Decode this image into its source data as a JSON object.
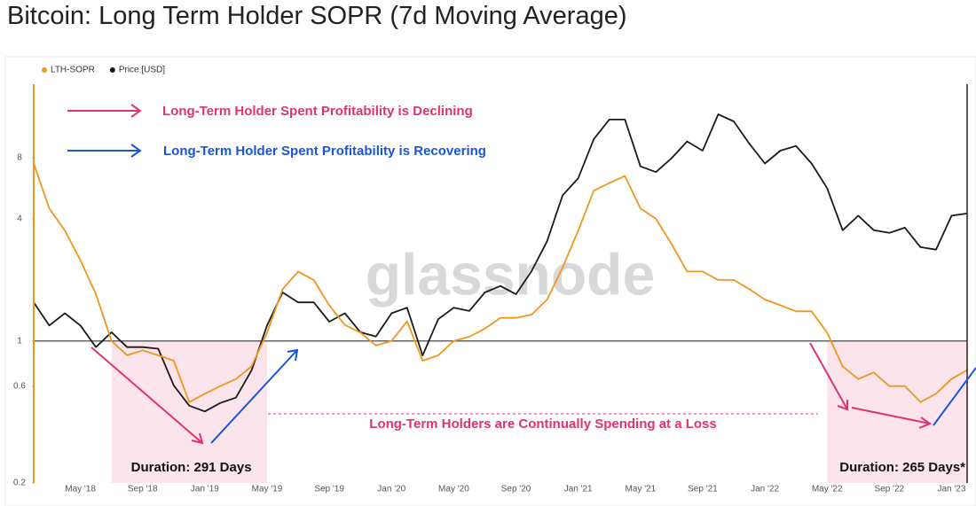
{
  "chart_data": {
    "type": "line",
    "title": "Bitcoin: Long Term Holder SOPR (7d Moving Average)",
    "watermark": "glassnode",
    "x": [
      "2018-02",
      "2018-03",
      "2018-04",
      "2018-05",
      "2018-06",
      "2018-07",
      "2018-08",
      "2018-09",
      "2018-10",
      "2018-11",
      "2018-12",
      "2019-01",
      "2019-02",
      "2019-03",
      "2019-04",
      "2019-05",
      "2019-06",
      "2019-07",
      "2019-08",
      "2019-09",
      "2019-10",
      "2019-11",
      "2019-12",
      "2020-01",
      "2020-02",
      "2020-03",
      "2020-04",
      "2020-05",
      "2020-06",
      "2020-07",
      "2020-08",
      "2020-09",
      "2020-10",
      "2020-11",
      "2020-12",
      "2021-01",
      "2021-02",
      "2021-03",
      "2021-04",
      "2021-05",
      "2021-06",
      "2021-07",
      "2021-08",
      "2021-09",
      "2021-10",
      "2021-11",
      "2021-12",
      "2022-01",
      "2022-02",
      "2022-03",
      "2022-04",
      "2022-05",
      "2022-06",
      "2022-07",
      "2022-08",
      "2022-09",
      "2022-10",
      "2022-11",
      "2022-12",
      "2023-01",
      "2023-02"
    ],
    "series": [
      {
        "name": "LTH-SOPR",
        "color": "#f0961e",
        "values": [
          7.5,
          4.5,
          3.5,
          2.5,
          1.7,
          1.0,
          0.85,
          0.9,
          0.85,
          0.8,
          0.5,
          0.55,
          0.6,
          0.65,
          0.75,
          1.1,
          1.8,
          2.2,
          2.0,
          1.5,
          1.2,
          1.1,
          0.95,
          1.0,
          1.25,
          0.8,
          0.85,
          1.0,
          1.05,
          1.15,
          1.3,
          1.3,
          1.35,
          1.6,
          2.3,
          3.5,
          5.5,
          6.0,
          6.5,
          4.5,
          4.0,
          3.0,
          2.2,
          2.2,
          2.0,
          2.0,
          1.8,
          1.6,
          1.5,
          1.4,
          1.4,
          1.1,
          0.75,
          0.65,
          0.7,
          0.6,
          0.6,
          0.5,
          0.55,
          0.65,
          0.72
        ]
      },
      {
        "name": "Price [USD]",
        "color": "#1a1a1a",
        "axis": "y2",
        "values": [
          10000,
          8000,
          9000,
          8000,
          6500,
          7500,
          6500,
          6500,
          6400,
          4500,
          3700,
          3500,
          3800,
          4000,
          5200,
          8000,
          11000,
          10000,
          10000,
          8300,
          9000,
          7500,
          7200,
          9000,
          9500,
          6000,
          8500,
          9500,
          9200,
          11000,
          11700,
          10800,
          13500,
          18000,
          28000,
          33000,
          48000,
          58000,
          58000,
          37000,
          35000,
          40000,
          47000,
          43000,
          61000,
          57000,
          46000,
          38000,
          43000,
          45000,
          38000,
          30000,
          20000,
          23000,
          20000,
          19500,
          20500,
          17000,
          16600,
          23000,
          23500
        ]
      }
    ],
    "xlim": [
      "2018-02",
      "2023-02"
    ],
    "xticks": [
      {
        "value": "2018-05",
        "label": "May '18"
      },
      {
        "value": "2018-09",
        "label": "Sep '18"
      },
      {
        "value": "2019-01",
        "label": "Jan '19"
      },
      {
        "value": "2019-05",
        "label": "May '19"
      },
      {
        "value": "2019-09",
        "label": "Sep '19"
      },
      {
        "value": "2020-01",
        "label": "Jan '20"
      },
      {
        "value": "2020-05",
        "label": "May '20"
      },
      {
        "value": "2020-09",
        "label": "Sep '20"
      },
      {
        "value": "2021-01",
        "label": "Jan '21"
      },
      {
        "value": "2021-05",
        "label": "May '21"
      },
      {
        "value": "2021-09",
        "label": "Sep '21"
      },
      {
        "value": "2022-01",
        "label": "Jan '22"
      },
      {
        "value": "2022-05",
        "label": "May '22"
      },
      {
        "value": "2022-09",
        "label": "Sep '22"
      },
      {
        "value": "2023-01",
        "label": "Jan '23"
      }
    ],
    "ylim": [
      0.2,
      18.4
    ],
    "yticks": [
      0.2,
      0.6,
      1,
      4,
      8
    ],
    "y_log": true,
    "y2lim": [
      1760,
      81500
    ],
    "y2_log": true,
    "reference_line": 1,
    "legend": "top-left",
    "shaded_ranges": [
      {
        "start": "2018-07",
        "end": "2019-05",
        "label": "Duration: 291 Days"
      },
      {
        "start": "2022-05",
        "end": "2023-02",
        "label": "Duration: 265 Days*"
      }
    ],
    "annotations": {
      "declining": "Long-Term Holder Spent Profitability is Declining",
      "recovering": "Long-Term Holder Spent Profitability is Recovering",
      "loss": "Long-Term Holders are Continually Spending at a Loss"
    }
  }
}
